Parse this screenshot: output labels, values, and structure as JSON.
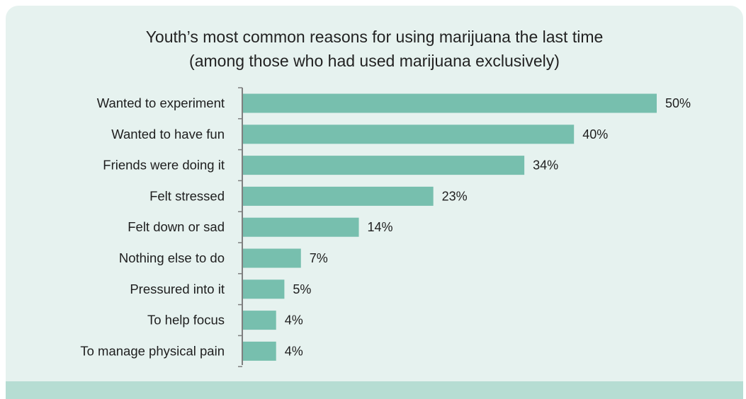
{
  "chart_data": {
    "type": "bar",
    "orientation": "horizontal",
    "title": "Youth’s most common reasons for using marijuana the last time",
    "subtitle": "(among those who had used marijuana exclusively)",
    "categories": [
      "Wanted to experiment",
      "Wanted to have fun",
      "Friends were doing it",
      "Felt stressed",
      "Felt down or sad",
      "Nothing else to do",
      "Pressured into it",
      "To help focus",
      "To manage physical pain"
    ],
    "values": [
      50,
      40,
      34,
      23,
      14,
      7,
      5,
      4,
      4
    ],
    "value_labels": [
      "50%",
      "40%",
      "34%",
      "23%",
      "14%",
      "7%",
      "5%",
      "4%",
      "4%"
    ],
    "unit": "%",
    "xlim": [
      0,
      50
    ],
    "bar_color": "#77bfae",
    "grid": false,
    "legend": "none"
  },
  "colors": {
    "panel_background": "#e6f2ef",
    "footer_band": "#b6ddd3",
    "axis": "#7f7f7f",
    "text": "#1e1e1e"
  }
}
